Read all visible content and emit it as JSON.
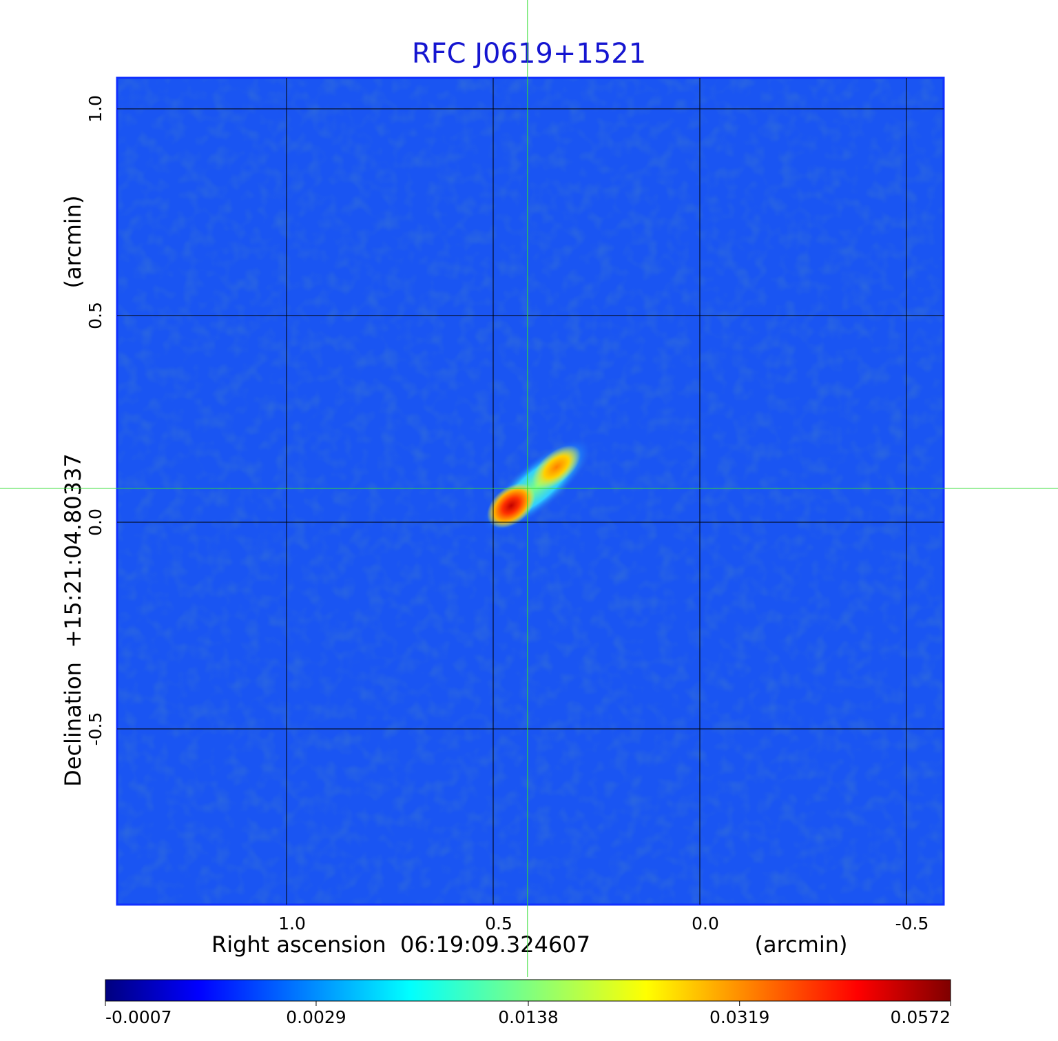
{
  "chart_data": {
    "type": "image",
    "title": "RFC J0619+1521",
    "xlabel": "Right ascension  06:19:09.324607",
    "xunit": "(arcmin)",
    "ylabel": "Declination  +15:21:04.80337",
    "yunit": "(arcmin)",
    "xlim": [
      1.41,
      -0.59
    ],
    "ylim": [
      -0.925,
      1.075
    ],
    "xticks": [
      {
        "value": 1,
        "label": "1.0"
      },
      0.5,
      {
        "value": 0,
        "label": "0.0"
      },
      -0.5
    ],
    "yticks": [
      -0.5,
      {
        "value": 0,
        "label": "0.0"
      },
      0.5,
      {
        "value": 1,
        "label": "1.0"
      }
    ],
    "grid": true,
    "crosshair": {
      "x": 0.417,
      "y": 0.082,
      "color": "#33dd33"
    },
    "colorbar": {
      "clim": [
        -0.0007,
        0.0572
      ],
      "scale": "sqrt",
      "colormap": "jet",
      "ticks": [
        -0.0007,
        0.0029,
        0.0138,
        0.0319,
        0.0572
      ]
    }
  }
}
